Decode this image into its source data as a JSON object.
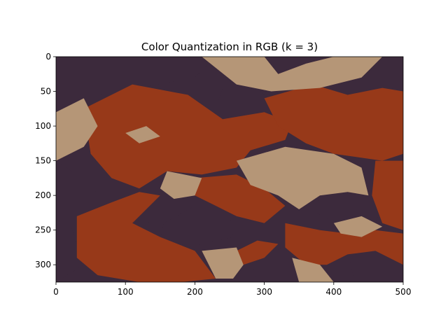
{
  "chart_data": {
    "type": "heatmap",
    "title": "Color Quantization in RGB (k = 3)",
    "xlabel": "",
    "ylabel": "",
    "xlim": [
      0,
      500
    ],
    "ylim": [
      325,
      0
    ],
    "xticks": [
      0,
      100,
      200,
      300,
      400,
      500
    ],
    "yticks": [
      0,
      50,
      100,
      150,
      200,
      250,
      300
    ],
    "grid": false,
    "legend": "none",
    "palette": {
      "cluster_dark": "#3c2a3c",
      "cluster_rust": "#973919",
      "cluster_tan": "#b59677"
    },
    "regions": [
      {
        "cluster": "cluster_dark",
        "polygon": [
          [
            0,
            30
          ],
          [
            60,
            0
          ],
          [
            230,
            0
          ],
          [
            200,
            30
          ],
          [
            120,
            45
          ],
          [
            40,
            60
          ],
          [
            0,
            80
          ]
        ]
      },
      {
        "cluster": "cluster_dark",
        "polygon": [
          [
            300,
            0
          ],
          [
            420,
            0
          ],
          [
            380,
            40
          ],
          [
            330,
            45
          ],
          [
            300,
            25
          ]
        ]
      },
      {
        "cluster": "cluster_dark",
        "polygon": [
          [
            470,
            0
          ],
          [
            500,
            0
          ],
          [
            500,
            50
          ],
          [
            470,
            30
          ]
        ]
      },
      {
        "cluster": "cluster_dark",
        "polygon": [
          [
            0,
            150
          ],
          [
            30,
            170
          ],
          [
            50,
            180
          ],
          [
            70,
            220
          ],
          [
            20,
            240
          ],
          [
            40,
            300
          ],
          [
            0,
            325
          ]
        ]
      },
      {
        "cluster": "cluster_dark",
        "polygon": [
          [
            370,
            110
          ],
          [
            400,
            85
          ],
          [
            450,
            80
          ],
          [
            480,
            95
          ],
          [
            475,
            135
          ],
          [
            440,
            145
          ],
          [
            390,
            135
          ]
        ]
      },
      {
        "cluster": "cluster_dark",
        "polygon": [
          [
            120,
            120
          ],
          [
            180,
            125
          ],
          [
            195,
            140
          ],
          [
            170,
            160
          ],
          [
            140,
            150
          ],
          [
            110,
            140
          ]
        ]
      },
      {
        "cluster": "cluster_dark",
        "polygon": [
          [
            240,
            45
          ],
          [
            285,
            40
          ],
          [
            310,
            65
          ],
          [
            295,
            100
          ],
          [
            245,
            105
          ],
          [
            230,
            75
          ]
        ]
      },
      {
        "cluster": "cluster_dark",
        "polygon": [
          [
            155,
            240
          ],
          [
            200,
            215
          ],
          [
            250,
            225
          ],
          [
            255,
            260
          ],
          [
            190,
            275
          ],
          [
            150,
            265
          ]
        ]
      },
      {
        "cluster": "cluster_dark",
        "polygon": [
          [
            280,
            290
          ],
          [
            330,
            275
          ],
          [
            360,
            300
          ],
          [
            345,
            325
          ],
          [
            290,
            325
          ]
        ]
      },
      {
        "cluster": "cluster_dark",
        "polygon": [
          [
            420,
            280
          ],
          [
            460,
            275
          ],
          [
            500,
            300
          ],
          [
            500,
            325
          ],
          [
            430,
            325
          ]
        ]
      },
      {
        "cluster": "cluster_dark",
        "polygon": [
          [
            380,
            200
          ],
          [
            430,
            195
          ],
          [
            470,
            215
          ],
          [
            460,
            240
          ],
          [
            410,
            245
          ],
          [
            375,
            225
          ]
        ]
      },
      {
        "cluster": "cluster_dark",
        "polygon": [
          [
            110,
            210
          ],
          [
            150,
            200
          ],
          [
            165,
            220
          ],
          [
            140,
            240
          ],
          [
            115,
            235
          ]
        ]
      },
      {
        "cluster": "cluster_dark",
        "polygon": [
          [
            210,
            300
          ],
          [
            250,
            295
          ],
          [
            260,
            325
          ],
          [
            215,
            325
          ]
        ]
      },
      {
        "cluster": "cluster_rust",
        "polygon": [
          [
            40,
            75
          ],
          [
            110,
            40
          ],
          [
            190,
            55
          ],
          [
            240,
            90
          ],
          [
            300,
            80
          ],
          [
            340,
            95
          ],
          [
            330,
            120
          ],
          [
            280,
            135
          ],
          [
            260,
            160
          ],
          [
            210,
            170
          ],
          [
            160,
            165
          ],
          [
            120,
            190
          ],
          [
            80,
            175
          ],
          [
            50,
            140
          ]
        ]
      },
      {
        "cluster": "cluster_rust",
        "polygon": [
          [
            300,
            60
          ],
          [
            370,
            40
          ],
          [
            420,
            55
          ],
          [
            470,
            45
          ],
          [
            500,
            50
          ],
          [
            500,
            140
          ],
          [
            470,
            150
          ],
          [
            400,
            140
          ],
          [
            360,
            125
          ],
          [
            320,
            100
          ]
        ]
      },
      {
        "cluster": "cluster_rust",
        "polygon": [
          [
            30,
            230
          ],
          [
            80,
            210
          ],
          [
            120,
            195
          ],
          [
            150,
            200
          ],
          [
            110,
            240
          ],
          [
            150,
            260
          ],
          [
            200,
            280
          ],
          [
            230,
            320
          ],
          [
            180,
            325
          ],
          [
            120,
            325
          ],
          [
            60,
            315
          ],
          [
            30,
            290
          ]
        ]
      },
      {
        "cluster": "cluster_rust",
        "polygon": [
          [
            200,
            175
          ],
          [
            260,
            170
          ],
          [
            300,
            190
          ],
          [
            330,
            215
          ],
          [
            300,
            240
          ],
          [
            260,
            230
          ],
          [
            230,
            215
          ],
          [
            200,
            200
          ]
        ]
      },
      {
        "cluster": "cluster_rust",
        "polygon": [
          [
            330,
            240
          ],
          [
            380,
            250
          ],
          [
            420,
            255
          ],
          [
            460,
            250
          ],
          [
            500,
            255
          ],
          [
            500,
            300
          ],
          [
            460,
            280
          ],
          [
            420,
            285
          ],
          [
            390,
            300
          ],
          [
            360,
            300
          ],
          [
            330,
            275
          ]
        ]
      },
      {
        "cluster": "cluster_rust",
        "polygon": [
          [
            460,
            150
          ],
          [
            500,
            150
          ],
          [
            500,
            250
          ],
          [
            470,
            240
          ],
          [
            455,
            200
          ]
        ]
      },
      {
        "cluster": "cluster_rust",
        "polygon": [
          [
            260,
            280
          ],
          [
            290,
            265
          ],
          [
            320,
            270
          ],
          [
            300,
            290
          ],
          [
            270,
            300
          ]
        ]
      },
      {
        "cluster": "cluster_tan",
        "polygon": [
          [
            260,
            150
          ],
          [
            330,
            130
          ],
          [
            400,
            140
          ],
          [
            440,
            160
          ],
          [
            450,
            200
          ],
          [
            420,
            195
          ],
          [
            380,
            200
          ],
          [
            350,
            220
          ],
          [
            320,
            200
          ],
          [
            280,
            185
          ]
        ]
      },
      {
        "cluster": "cluster_tan",
        "polygon": [
          [
            210,
            0
          ],
          [
            300,
            0
          ],
          [
            320,
            25
          ],
          [
            360,
            10
          ],
          [
            400,
            0
          ],
          [
            470,
            0
          ],
          [
            440,
            30
          ],
          [
            380,
            45
          ],
          [
            310,
            50
          ],
          [
            260,
            40
          ]
        ]
      },
      {
        "cluster": "cluster_tan",
        "polygon": [
          [
            0,
            80
          ],
          [
            40,
            60
          ],
          [
            60,
            100
          ],
          [
            40,
            130
          ],
          [
            0,
            150
          ]
        ]
      },
      {
        "cluster": "cluster_tan",
        "polygon": [
          [
            160,
            165
          ],
          [
            210,
            175
          ],
          [
            200,
            200
          ],
          [
            170,
            205
          ],
          [
            150,
            190
          ]
        ]
      },
      {
        "cluster": "cluster_tan",
        "polygon": [
          [
            210,
            280
          ],
          [
            260,
            275
          ],
          [
            270,
            300
          ],
          [
            255,
            320
          ],
          [
            230,
            320
          ]
        ]
      },
      {
        "cluster": "cluster_tan",
        "polygon": [
          [
            400,
            240
          ],
          [
            440,
            230
          ],
          [
            470,
            245
          ],
          [
            440,
            260
          ],
          [
            410,
            255
          ]
        ]
      },
      {
        "cluster": "cluster_tan",
        "polygon": [
          [
            100,
            110
          ],
          [
            130,
            100
          ],
          [
            150,
            115
          ],
          [
            120,
            125
          ]
        ]
      },
      {
        "cluster": "cluster_tan",
        "polygon": [
          [
            340,
            290
          ],
          [
            380,
            300
          ],
          [
            400,
            325
          ],
          [
            350,
            325
          ]
        ]
      }
    ]
  }
}
